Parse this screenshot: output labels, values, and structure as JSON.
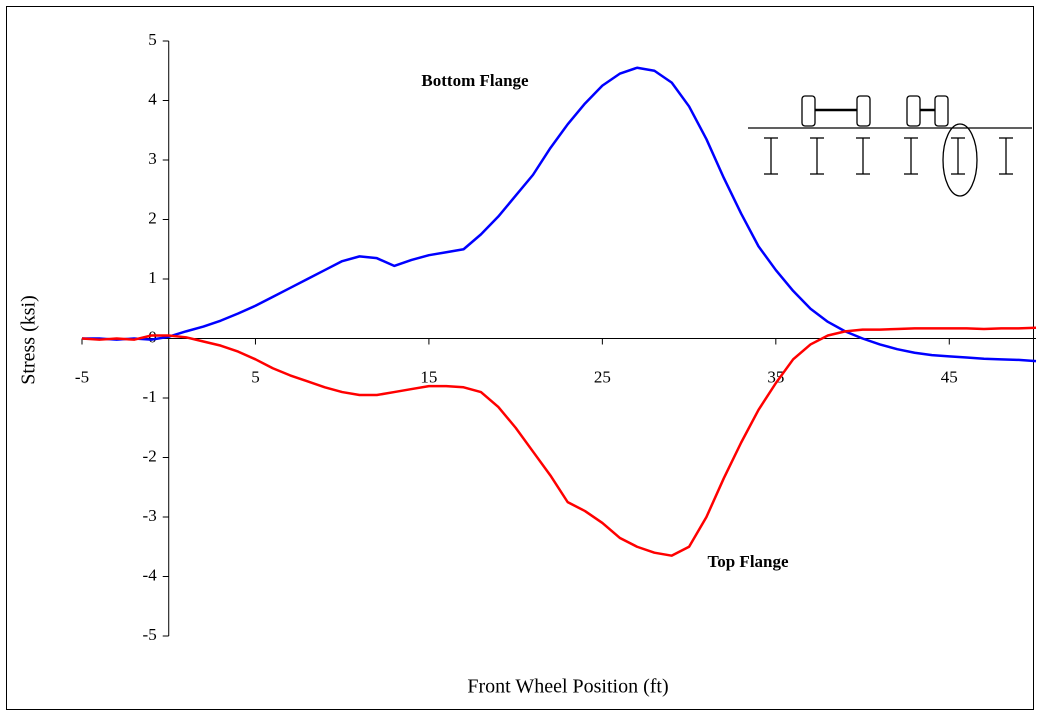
{
  "chart_data": {
    "type": "line",
    "x_label": "Front Wheel Position (ft)",
    "y_label": "Stress (ksi)",
    "xlim": [
      -5,
      50
    ],
    "ylim": [
      -5,
      5
    ],
    "xticks": [
      -5,
      5,
      15,
      25,
      35,
      45
    ],
    "yticks": [
      -5,
      -4,
      -3,
      -2,
      -1,
      0,
      1,
      2,
      3,
      4,
      5
    ],
    "annotations": [
      "Bottom Flange",
      "Top Flange"
    ],
    "x": [
      -5,
      -4,
      -3,
      -2,
      -1,
      0,
      1,
      2,
      3,
      4,
      5,
      6,
      7,
      8,
      9,
      10,
      11,
      12,
      13,
      14,
      15,
      16,
      17,
      18,
      19,
      20,
      21,
      22,
      23,
      24,
      25,
      26,
      27,
      28,
      29,
      30,
      31,
      32,
      33,
      34,
      35,
      36,
      37,
      38,
      39,
      40,
      41,
      42,
      43,
      44,
      45,
      46,
      47,
      48,
      49,
      50
    ],
    "series": [
      {
        "name": "Bottom Flange",
        "color": "#0000ff",
        "values": [
          0,
          0,
          -0.02,
          0,
          -0.02,
          0.03,
          0.12,
          0.2,
          0.3,
          0.42,
          0.55,
          0.7,
          0.85,
          1.0,
          1.15,
          1.3,
          1.38,
          1.35,
          1.22,
          1.32,
          1.4,
          1.45,
          1.5,
          1.75,
          2.05,
          2.4,
          2.75,
          3.2,
          3.6,
          3.95,
          4.25,
          4.45,
          4.55,
          4.5,
          4.3,
          3.9,
          3.35,
          2.7,
          2.1,
          1.55,
          1.15,
          0.8,
          0.5,
          0.28,
          0.12,
          0,
          -0.1,
          -0.18,
          -0.24,
          -0.28,
          -0.3,
          -0.32,
          -0.34,
          -0.35,
          -0.36,
          -0.38
        ]
      },
      {
        "name": "Top Flange",
        "color": "#ff0000",
        "values": [
          0,
          -0.02,
          0,
          -0.02,
          0.05,
          0.05,
          0.02,
          -0.05,
          -0.12,
          -0.22,
          -0.35,
          -0.5,
          -0.62,
          -0.72,
          -0.82,
          -0.9,
          -0.95,
          -0.95,
          -0.9,
          -0.85,
          -0.8,
          -0.8,
          -0.82,
          -0.9,
          -1.15,
          -1.5,
          -1.9,
          -2.3,
          -2.75,
          -2.9,
          -3.1,
          -3.35,
          -3.5,
          -3.6,
          -3.65,
          -3.5,
          -3.0,
          -2.35,
          -1.75,
          -1.2,
          -0.75,
          -0.35,
          -0.1,
          0.05,
          0.12,
          0.15,
          0.15,
          0.16,
          0.17,
          0.17,
          0.17,
          0.17,
          0.16,
          0.17,
          0.17,
          0.18
        ]
      }
    ]
  }
}
